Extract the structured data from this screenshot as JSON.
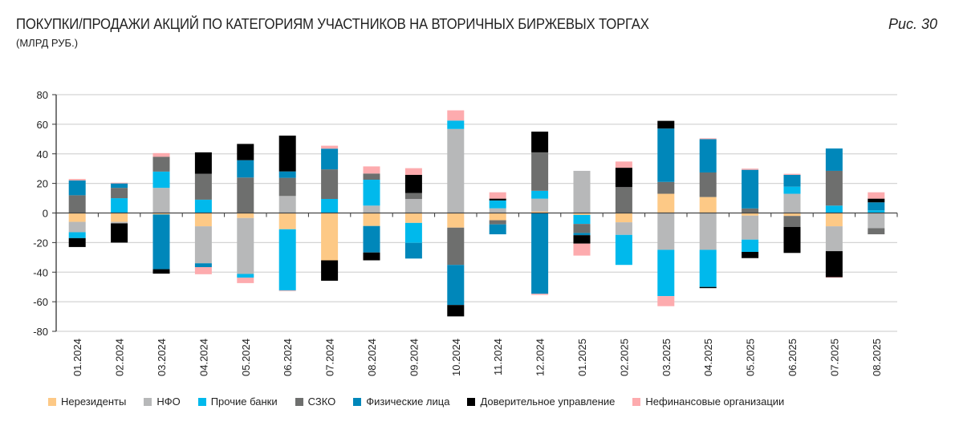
{
  "header": {
    "title": "ПОКУПКИ/ПРОДАЖИ АКЦИЙ ПО КАТЕГОРИЯМ УЧАСТНИКОВ НА ВТОРИЧНЫХ БИРЖЕВЫХ ТОРГАХ",
    "subtitle": "(МЛРД РУБ.)",
    "figure_label": "Рис. 30"
  },
  "chart_data": {
    "type": "bar",
    "stacked": true,
    "title": "ПОКУПКИ/ПРОДАЖИ АКЦИЙ ПО КАТЕГОРИЯМ УЧАСТНИКОВ НА ВТОРИЧНЫХ БИРЖЕВЫХ ТОРГАХ",
    "ylabel": "млрд руб.",
    "ylim": [
      -80,
      80
    ],
    "yticks": [
      80,
      60,
      40,
      20,
      0,
      -20,
      -40,
      -60,
      -80
    ],
    "grid": true,
    "legend_position": "bottom",
    "categories": [
      "01.2024",
      "02.2024",
      "03.2024",
      "04.2024",
      "05.2024",
      "06.2024",
      "07.2024",
      "08.2024",
      "09.2024",
      "10.2024",
      "11.2024",
      "12.2024",
      "01.2025",
      "02.2025",
      "03.2025",
      "04.2025",
      "05.2025",
      "06.2025",
      "07.2025",
      "08.2025"
    ],
    "series": [
      {
        "name": "Нерезиденты",
        "color": "#FDC986",
        "values": [
          -6,
          -6,
          -1,
          -9,
          -3.4,
          -11,
          -32,
          -8.8,
          -6.7,
          -9.9,
          -4.9,
          1,
          -1.3,
          -6.3,
          13,
          10.8,
          -1.8,
          -2,
          -9,
          0
        ]
      },
      {
        "name": "НФО",
        "color": "#B7B8B9",
        "values": [
          -7,
          -1,
          17,
          -25,
          -37.8,
          11.5,
          0,
          5,
          9.5,
          56.8,
          3.2,
          8.7,
          28.5,
          -8.5,
          -24.9,
          -24.9,
          -16.2,
          13,
          -16.8,
          -10.3
        ]
      },
      {
        "name": "Прочие банки",
        "color": "#00B9EC",
        "values": [
          -4,
          10,
          11,
          9,
          -2.5,
          -41.3,
          9.5,
          17.5,
          -13.5,
          5.7,
          5.3,
          5.3,
          -6.1,
          -20.3,
          -31.3,
          -25.1,
          -8.3,
          4.8,
          5,
          1.8
        ]
      },
      {
        "name": "СЗКО",
        "color": "#6E6F6E",
        "values": [
          12,
          7,
          10,
          17.5,
          24,
          12.3,
          20,
          4.2,
          4,
          -25.2,
          -2.8,
          26,
          -6.1,
          17.5,
          8,
          16.6,
          3.1,
          -7.4,
          23.5,
          -4.1
        ]
      },
      {
        "name": "Физические лица",
        "color": "#0087BA",
        "values": [
          10,
          3,
          -37,
          -2.6,
          11.7,
          4.3,
          14,
          -17.9,
          -10.6,
          -27.1,
          -6.7,
          -54.6,
          -1.5,
          0,
          36.1,
          22.5,
          26.1,
          8,
          15.1,
          5.4
        ]
      },
      {
        "name": "Доверительное управление",
        "color": "#000000",
        "values": [
          -6,
          -13,
          -3,
          14.5,
          11,
          24.2,
          -13.8,
          -5.3,
          12.3,
          -7.7,
          1.2,
          14,
          -5.7,
          13.1,
          5.2,
          -0.8,
          -4.2,
          -17.6,
          -17.6,
          2.5
        ]
      },
      {
        "name": "Нефинансовые организации",
        "color": "#FDABAE",
        "values": [
          1,
          0.5,
          2.5,
          -4.8,
          -3.7,
          -0.5,
          2,
          4.8,
          4.5,
          6.9,
          4.3,
          -0.8,
          -8.1,
          4.2,
          -6.8,
          0.6,
          0.8,
          0.7,
          -0.3,
          4.3
        ]
      }
    ]
  }
}
